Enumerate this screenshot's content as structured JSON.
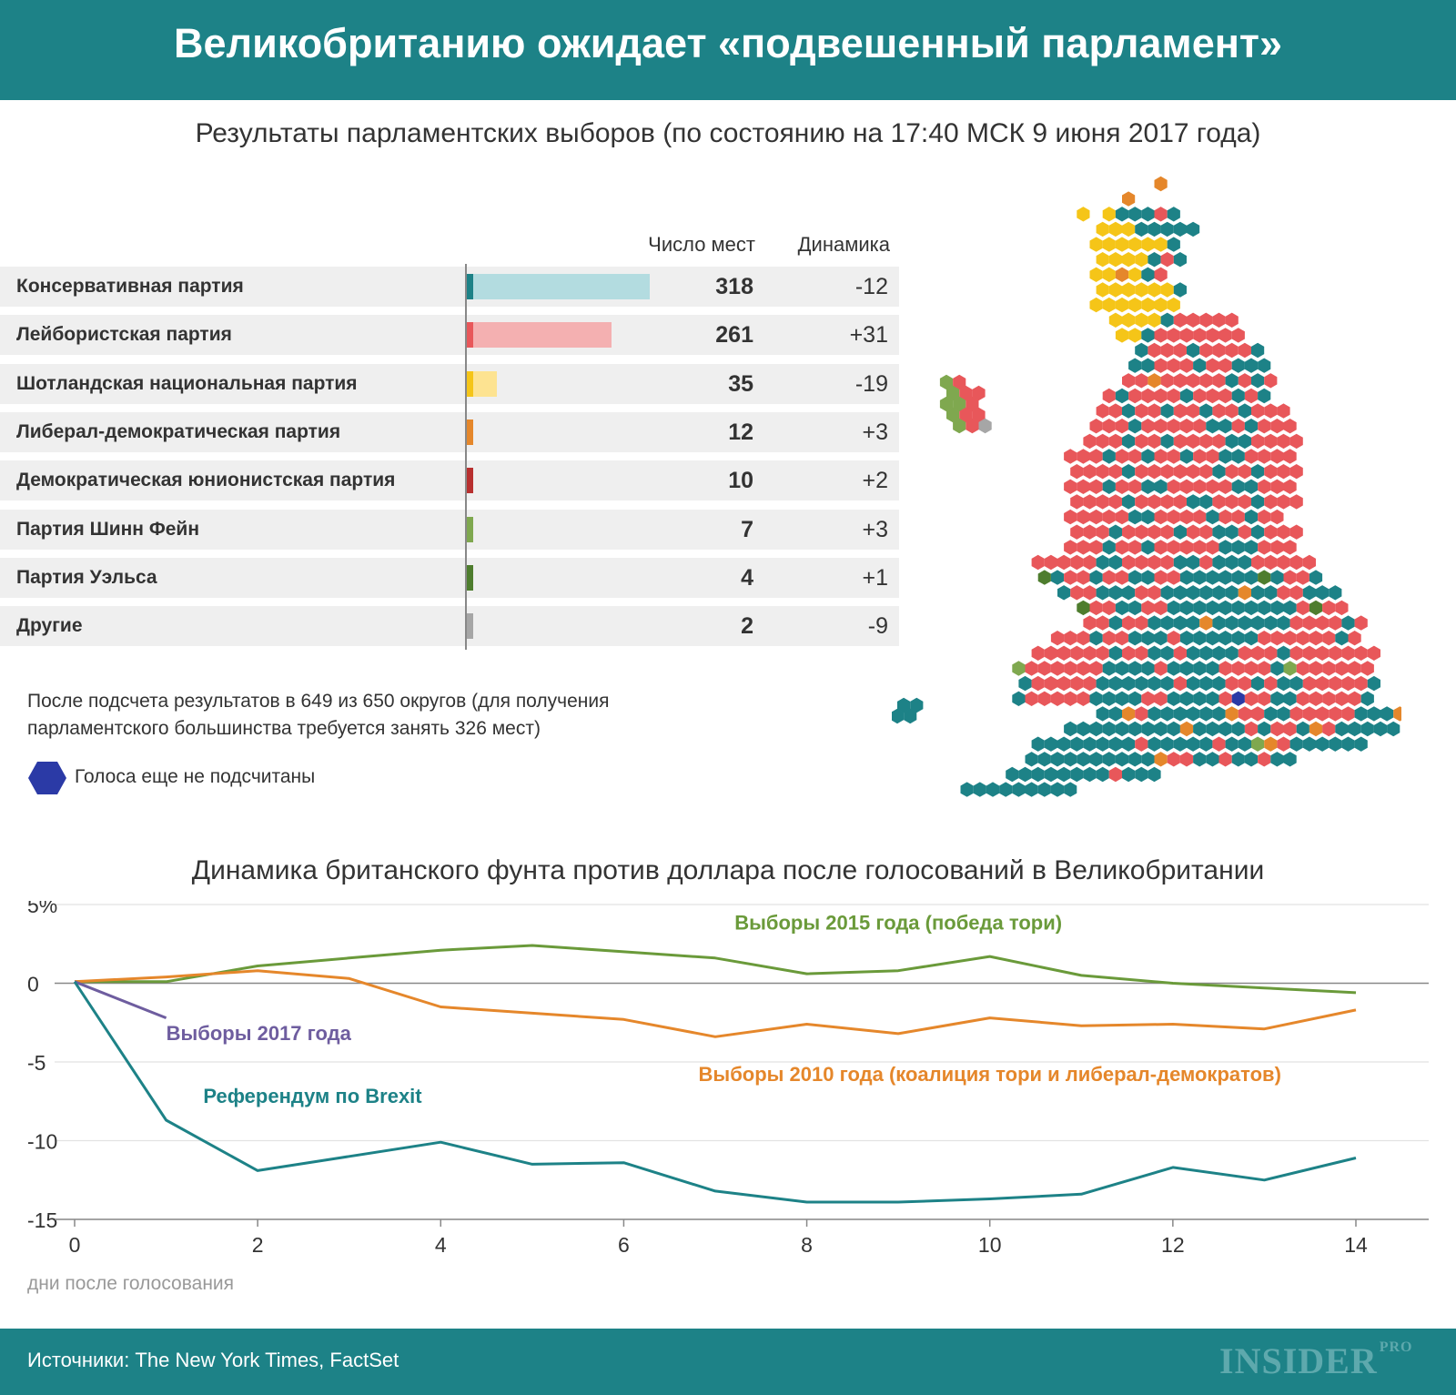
{
  "header": {
    "title": "Великобританию ожидает «подвешенный парламент»"
  },
  "results": {
    "subtitle": "Результаты парламентских выборов (по состоянию на 17:40 МСК 9 июня 2017 года)",
    "col_seats": "Число мест",
    "col_change": "Динамика",
    "note": "После подсчета результатов в 649 из 650 округов (для получения парламентского большинства требуется занять 326 мест)",
    "legend_text": "Голоса еще не подсчитаны",
    "legend_color": "#2b3aa6"
  },
  "chart_data": [
    {
      "type": "bar",
      "categories": [
        "Консервативная партия",
        "Лейбористская партия",
        "Шотландская национальная партия",
        "Либерал-демократическая партия",
        "Демократическая юнионистская партия",
        "Партия Шинн Фейн",
        "Партия Уэльса",
        "Другие"
      ],
      "values": [
        318,
        261,
        35,
        12,
        10,
        7,
        4,
        2
      ],
      "change_labels": [
        "-12",
        "+31",
        "-19",
        "+3",
        "+2",
        "+3",
        "+1",
        "-9"
      ],
      "changes": [
        -12,
        31,
        -19,
        3,
        2,
        3,
        1,
        -9
      ],
      "colors": [
        "#1d8287",
        "#e8575a",
        "#f5c518",
        "#e5872b",
        "#b8302f",
        "#7fa84f",
        "#4e7d2e",
        "#a6a6a6"
      ],
      "light_colors": [
        "#b3dce0",
        "#f4b0b1",
        "#fde391",
        "#f6c49a",
        "#e0a7a7",
        "#c9dfae",
        "#a8c28f",
        "#d2d2d2"
      ]
    },
    {
      "type": "line",
      "title": "Динамика британского фунта против доллара после голосований в Великобритании",
      "xlabel": "дни после голосования",
      "ylabel": "",
      "xlim": [
        0,
        14
      ],
      "ylim": [
        -15,
        5
      ],
      "xticks": [
        "0",
        "2",
        "4",
        "6",
        "8",
        "10",
        "12",
        "14"
      ],
      "yticks": [
        "5%",
        "0",
        "-5",
        "-10",
        "-15"
      ],
      "series": [
        {
          "name": "Выборы 2015 года (победа тори)",
          "color": "#6a9a3a",
          "x": [
            0,
            1,
            2,
            3,
            4,
            5,
            6,
            7,
            8,
            9,
            10,
            11,
            12,
            13,
            14
          ],
          "values": [
            0.1,
            0.1,
            1.1,
            1.6,
            2.1,
            2.4,
            2.0,
            1.6,
            0.6,
            0.8,
            1.7,
            0.5,
            0.0,
            -0.3,
            -0.6
          ]
        },
        {
          "name": "Выборы 2010 года  (коалиция тори и либерал-демократов)",
          "color": "#e5872b",
          "x": [
            0,
            1,
            2,
            3,
            4,
            5,
            6,
            7,
            8,
            9,
            10,
            11,
            12,
            13,
            14
          ],
          "values": [
            0.1,
            0.4,
            0.8,
            0.3,
            -1.5,
            -1.9,
            -2.3,
            -3.4,
            -2.6,
            -3.2,
            -2.2,
            -2.7,
            -2.6,
            -2.9,
            -1.7
          ]
        },
        {
          "name": "Выборы 2017 года",
          "color": "#6e5d9f",
          "x": [
            0,
            1
          ],
          "values": [
            0.1,
            -2.2
          ]
        },
        {
          "name": "Референдум по Brexit",
          "color": "#1d8287",
          "x": [
            0,
            1,
            2,
            3,
            4,
            5,
            6,
            7,
            8,
            9,
            10,
            11,
            12,
            13,
            14
          ],
          "values": [
            0.1,
            -8.7,
            -11.9,
            -11.0,
            -10.1,
            -11.5,
            -11.4,
            -13.2,
            -13.9,
            -13.9,
            -13.7,
            -13.4,
            -11.7,
            -12.5,
            -11.1
          ]
        }
      ]
    }
  ],
  "footer": {
    "sources": "Источники: The New York Times, FactSet",
    "logo": "INSIDER",
    "logo_sub": "PRO"
  }
}
